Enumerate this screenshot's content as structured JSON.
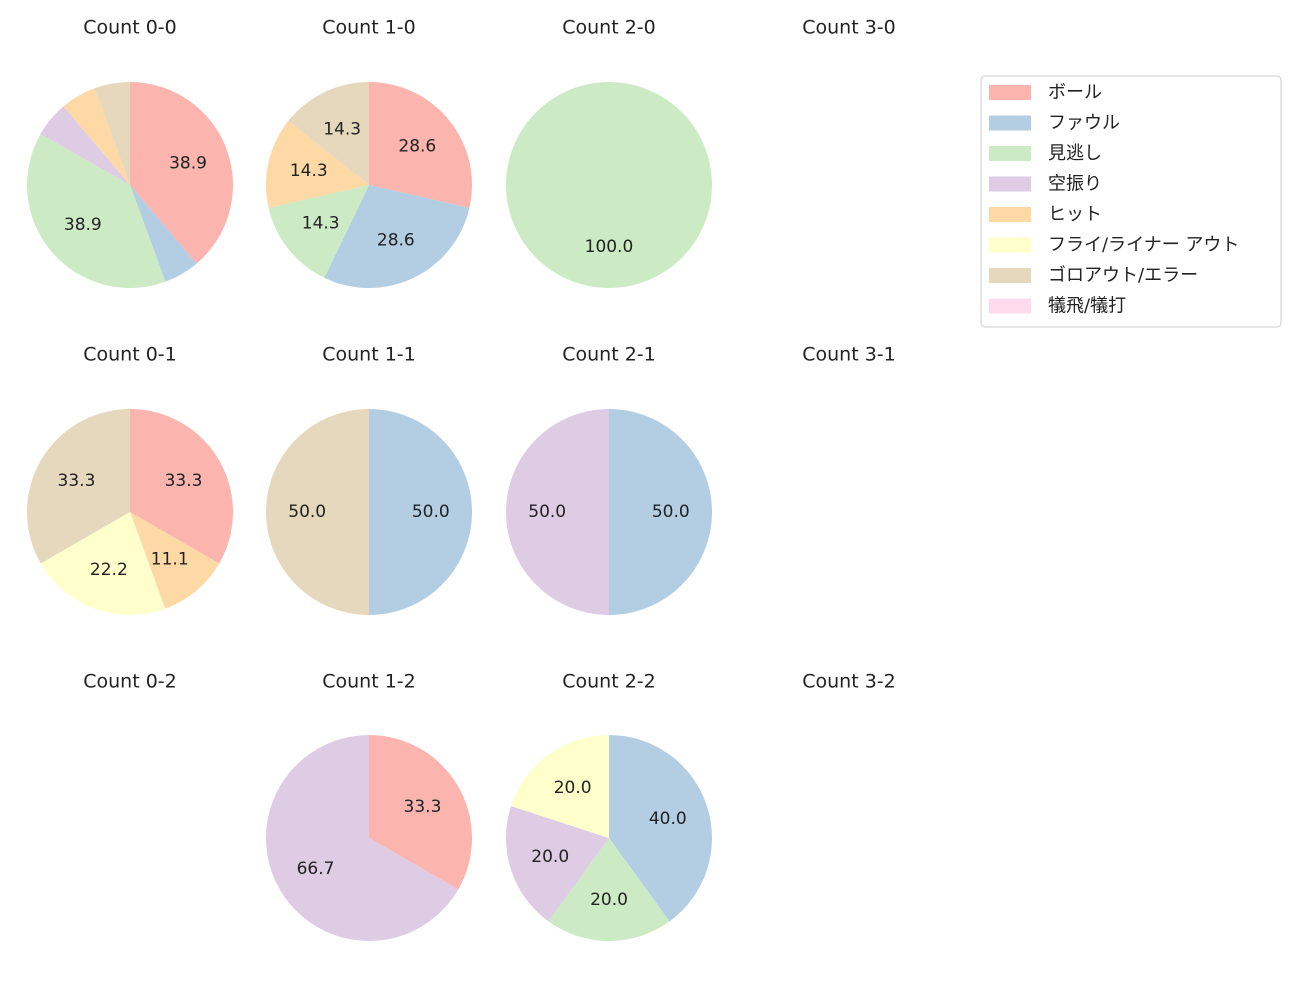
{
  "chart_data": [
    {
      "type": "pie",
      "title": "Count 0-0",
      "categories": [
        "ボール",
        "ファウル",
        "見逃し",
        "空振り",
        "ヒット",
        "ゴロアウト/エラー"
      ],
      "values": [
        38.9,
        5.6,
        38.9,
        5.6,
        5.6,
        5.6
      ],
      "value_labels": [
        "38.9",
        null,
        "38.9",
        null,
        null,
        null
      ]
    },
    {
      "type": "pie",
      "title": "Count 1-0",
      "categories": [
        "ボール",
        "ファウル",
        "見逃し",
        "ヒット",
        "ゴロアウト/エラー"
      ],
      "values": [
        28.6,
        28.6,
        14.3,
        14.3,
        14.3
      ],
      "value_labels": [
        "28.6",
        "28.6",
        "14.3",
        "14.3",
        "14.3"
      ]
    },
    {
      "type": "pie",
      "title": "Count 2-0",
      "categories": [
        "見逃し"
      ],
      "values": [
        100
      ],
      "value_labels": [
        "100.0"
      ]
    },
    {
      "type": "pie",
      "title": "Count 3-0",
      "categories": [],
      "values": [],
      "value_labels": []
    },
    {
      "type": "pie",
      "title": "Count 0-1",
      "categories": [
        "ボール",
        "ヒット",
        "フライ/ライナー アウト",
        "ゴロアウト/エラー"
      ],
      "values": [
        33.3,
        11.1,
        22.2,
        33.3
      ],
      "value_labels": [
        "33.3",
        "11.1",
        "22.2",
        "33.3"
      ]
    },
    {
      "type": "pie",
      "title": "Count 1-1",
      "categories": [
        "ファウル",
        "ゴロアウト/エラー"
      ],
      "values": [
        50,
        50
      ],
      "value_labels": [
        "50.0",
        "50.0"
      ]
    },
    {
      "type": "pie",
      "title": "Count 2-1",
      "categories": [
        "ファウル",
        "空振り"
      ],
      "values": [
        50,
        50
      ],
      "value_labels": [
        "50.0",
        "50.0"
      ]
    },
    {
      "type": "pie",
      "title": "Count 3-1",
      "categories": [],
      "values": [],
      "value_labels": []
    },
    {
      "type": "pie",
      "title": "Count 0-2",
      "categories": [],
      "values": [],
      "value_labels": []
    },
    {
      "type": "pie",
      "title": "Count 1-2",
      "categories": [
        "ボール",
        "空振り"
      ],
      "values": [
        33.3,
        66.7
      ],
      "value_labels": [
        "33.3",
        "66.7"
      ]
    },
    {
      "type": "pie",
      "title": "Count 2-2",
      "categories": [
        "ファウル",
        "見逃し",
        "空振り",
        "フライ/ライナー アウト"
      ],
      "values": [
        40,
        20,
        20,
        20
      ],
      "value_labels": [
        "40.0",
        "20.0",
        "20.0",
        "20.0"
      ]
    },
    {
      "type": "pie",
      "title": "Count 3-2",
      "categories": [],
      "values": [],
      "value_labels": []
    }
  ],
  "legend": {
    "position": "upper right",
    "labels": [
      "ボール",
      "ファウル",
      "見逃し",
      "空振り",
      "ヒット",
      "フライ/ライナー アウト",
      "ゴロアウト/エラー",
      "犠飛/犠打"
    ],
    "colors": [
      "#fbb4ae",
      "#b3cde3",
      "#ccebc5",
      "#decbe4",
      "#fed9a6",
      "#ffffcc",
      "#e5d8bd",
      "#fddaec"
    ]
  }
}
